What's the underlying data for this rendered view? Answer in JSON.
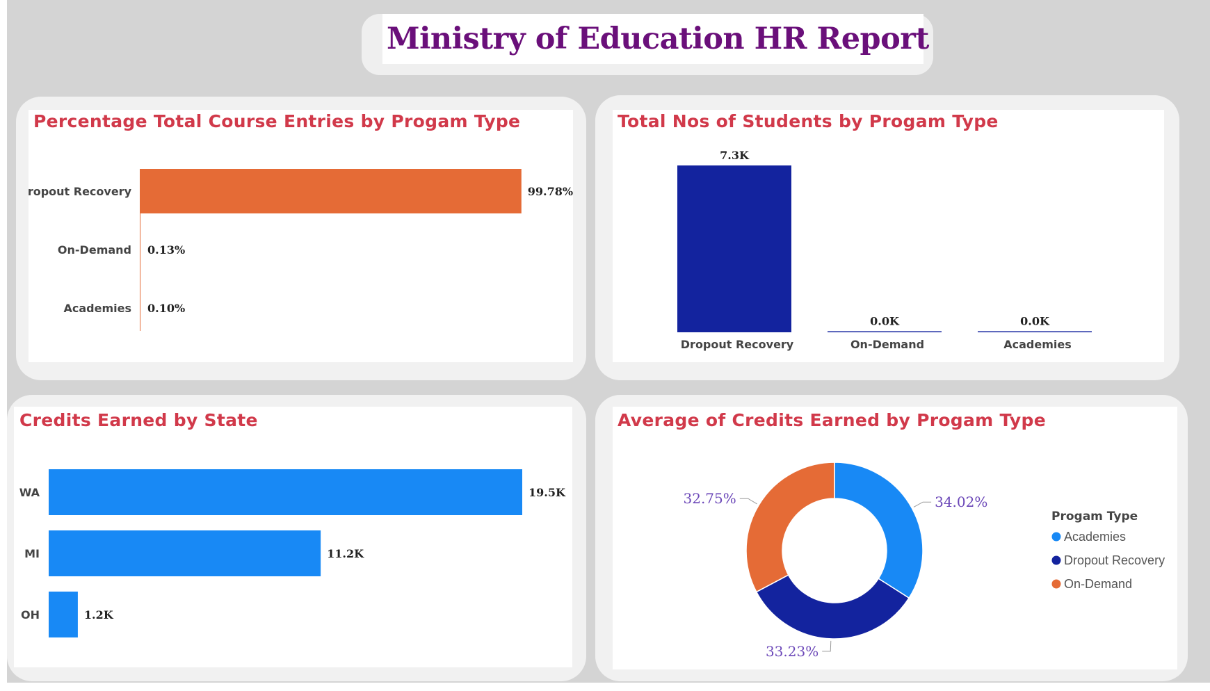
{
  "report": {
    "title": "Ministry of Education HR Report"
  },
  "colors": {
    "orange": "#e56b36",
    "navy": "#13239e",
    "blue": "#1889f5",
    "title_red": "#d1394a",
    "title_purple": "#6a0f7a",
    "donut_label": "#6b47b8"
  },
  "chart_data": [
    {
      "id": "course-entries",
      "type": "bar",
      "orientation": "horizontal",
      "title": "Percentage Total Course Entries by Progam Type",
      "categories": [
        "Dropout Recovery",
        "On-Demand",
        "Academies"
      ],
      "values": [
        99.78,
        0.13,
        0.1
      ],
      "value_labels": [
        "99.78%",
        "0.13%",
        "0.10%"
      ],
      "unit": "%",
      "color": "#e56b36",
      "xlim": [
        0,
        100
      ]
    },
    {
      "id": "students",
      "type": "bar",
      "orientation": "vertical",
      "title": "Total Nos of Students by Progam Type",
      "categories": [
        "Dropout Recovery",
        "On-Demand",
        "Academies"
      ],
      "values": [
        7300,
        0,
        0
      ],
      "value_labels": [
        "7.3K",
        "0.0K",
        "0.0K"
      ],
      "color": "#13239e",
      "ylim": [
        0,
        7300
      ]
    },
    {
      "id": "credits-state",
      "type": "bar",
      "orientation": "horizontal",
      "title": "Credits Earned by State",
      "categories": [
        "WA",
        "MI",
        "OH"
      ],
      "values": [
        19500,
        11200,
        1200
      ],
      "value_labels": [
        "19.5K",
        "11.2K",
        "1.2K"
      ],
      "color": "#1889f5",
      "xlim": [
        0,
        19500
      ]
    },
    {
      "id": "avg-credits",
      "type": "pie",
      "style": "donut",
      "title": "Average of Credits Earned by Progam Type",
      "legend_title": "Progam Type",
      "legend_position": "right",
      "slices": [
        {
          "label": "Academies",
          "value": 34.02,
          "value_label": "34.02%",
          "color": "#1889f5"
        },
        {
          "label": "Dropout Recovery",
          "value": 33.23,
          "value_label": "33.23%",
          "color": "#13239e"
        },
        {
          "label": "On-Demand",
          "value": 32.75,
          "value_label": "32.75%",
          "color": "#e56b36"
        }
      ]
    }
  ]
}
